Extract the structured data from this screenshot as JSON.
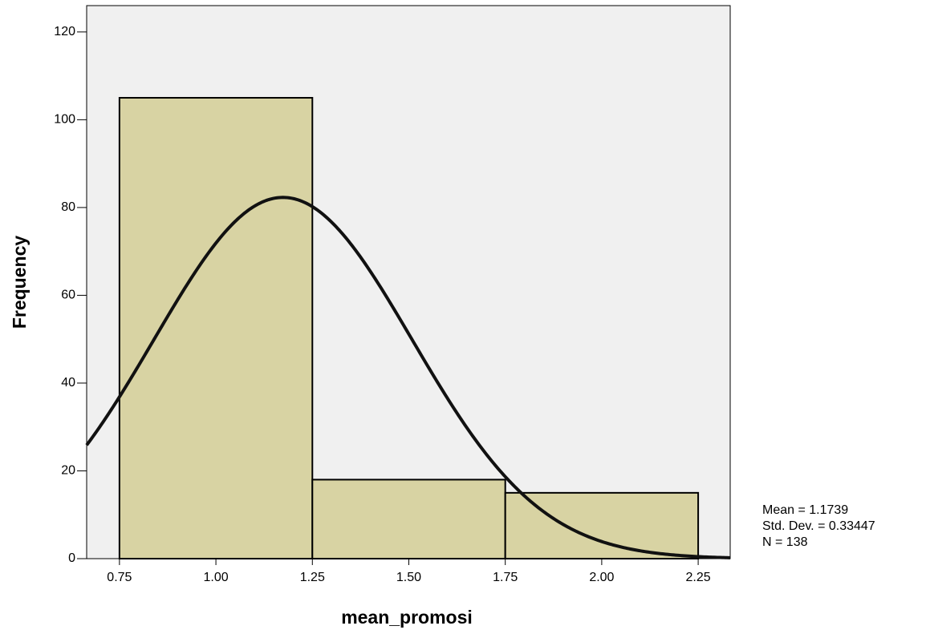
{
  "chart_data": {
    "type": "histogram",
    "bins": [
      0.75,
      1.25,
      1.75,
      2.25
    ],
    "values": [
      105,
      18,
      15
    ],
    "color": "#d8d3a3",
    "background": "#f0f0f0",
    "xlabel": "mean_promosi",
    "ylabel": "Frequency",
    "xlim": [
      0.665,
      2.333
    ],
    "ylim": [
      0,
      126
    ],
    "xticks": [
      0.75,
      {
        "value": 1.0,
        "label": "1.00"
      },
      1.25,
      {
        "value": 1.5,
        "label": "1.50"
      },
      1.75,
      {
        "value": 2.0,
        "label": "2.00"
      },
      2.25
    ],
    "yticks": [
      0,
      20,
      40,
      60,
      80,
      100,
      120
    ],
    "normal_curve": true,
    "stats": [
      {
        "value": 1.1739,
        "label": "Mean = 1.1739"
      },
      {
        "value": 0.33447,
        "label": "Std. Dev. = 0.33447"
      },
      {
        "value": 138,
        "label": "N = 138"
      }
    ]
  }
}
